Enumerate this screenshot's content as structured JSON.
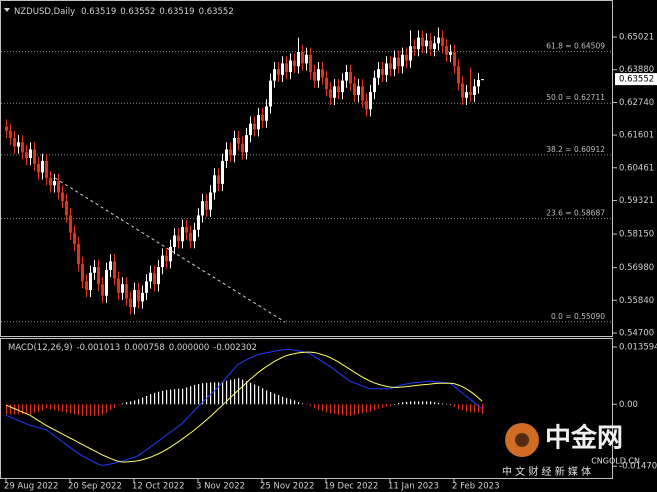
{
  "chart_data": [
    {
      "type": "candlestick",
      "title": "NZDUSD,Daily",
      "bull_color": "#ffffff",
      "bear_color": "#e03020",
      "categories": [
        "29 Aug 2022",
        null,
        null,
        null,
        null,
        null,
        null,
        null,
        null,
        null,
        null,
        null,
        null,
        null,
        null,
        null,
        "20 Sep 2022",
        null,
        null,
        null,
        null,
        null,
        null,
        null,
        null,
        null,
        null,
        null,
        null,
        null,
        null,
        null,
        "12 Oct 2022",
        null,
        null,
        null,
        null,
        null,
        null,
        null,
        null,
        null,
        null,
        null,
        null,
        null,
        null,
        null,
        "3 Nov 2022",
        null,
        null,
        null,
        null,
        null,
        null,
        null,
        null,
        null,
        null,
        null,
        null,
        null,
        null,
        null,
        "25 Nov 2022",
        null,
        null,
        null,
        null,
        null,
        null,
        null,
        null,
        null,
        null,
        null,
        null,
        null,
        null,
        null,
        "19 Dec 2022",
        null,
        null,
        null,
        null,
        null,
        null,
        null,
        null,
        null,
        null,
        null,
        null,
        null,
        null,
        null,
        "11 Jan 2023",
        null,
        null,
        null,
        null,
        null,
        null,
        null,
        null,
        null,
        null,
        null,
        null,
        null,
        null,
        null,
        "2 Feb 2023",
        null,
        null,
        null,
        null,
        null,
        null,
        null
      ],
      "open": [
        0.619,
        0.6175,
        0.615,
        0.612,
        0.6135,
        0.61,
        0.608,
        0.611,
        0.606,
        0.603,
        0.607,
        0.601,
        0.5985,
        0.6,
        0.596,
        0.593,
        0.588,
        0.582,
        0.578,
        0.571,
        0.565,
        0.562,
        0.568,
        0.57,
        0.564,
        0.56,
        0.569,
        0.572,
        0.566,
        0.561,
        0.564,
        0.559,
        0.556,
        0.562,
        0.558,
        0.561,
        0.565,
        0.568,
        0.564,
        0.57,
        0.574,
        0.572,
        0.577,
        0.581,
        0.579,
        0.584,
        0.582,
        0.579,
        0.583,
        0.588,
        0.593,
        0.59,
        0.596,
        0.602,
        0.599,
        0.607,
        0.611,
        0.609,
        0.615,
        0.613,
        0.61,
        0.616,
        0.62,
        0.618,
        0.623,
        0.621,
        0.626,
        0.635,
        0.639,
        0.637,
        0.641,
        0.638,
        0.642,
        0.64,
        0.645,
        0.641,
        0.644,
        0.638,
        0.635,
        0.639,
        0.636,
        0.632,
        0.629,
        0.633,
        0.631,
        0.635,
        0.638,
        0.634,
        0.63,
        0.633,
        0.628,
        0.625,
        0.631,
        0.636,
        0.639,
        0.637,
        0.641,
        0.639,
        0.643,
        0.64,
        0.644,
        0.642,
        0.647,
        0.646,
        0.65,
        0.647,
        0.649,
        0.646,
        0.648,
        0.65,
        0.647,
        0.644,
        0.645,
        0.64,
        0.634,
        0.629,
        0.631,
        0.63,
        0.633,
        0.63519
      ],
      "high": [
        0.6215,
        0.62,
        0.6175,
        0.616,
        0.616,
        0.6125,
        0.6135,
        0.6135,
        0.6085,
        0.6095,
        0.6095,
        0.6035,
        0.6025,
        0.6025,
        0.5985,
        0.5955,
        0.5905,
        0.5845,
        0.5805,
        0.5735,
        0.5675,
        0.5705,
        0.5725,
        0.5725,
        0.5665,
        0.5715,
        0.5745,
        0.5745,
        0.5685,
        0.5665,
        0.5665,
        0.5615,
        0.5645,
        0.5645,
        0.5635,
        0.5675,
        0.5705,
        0.5705,
        0.5725,
        0.5765,
        0.5765,
        0.5795,
        0.5835,
        0.5835,
        0.5865,
        0.5865,
        0.5845,
        0.5855,
        0.5905,
        0.5955,
        0.5955,
        0.5985,
        0.6045,
        0.6045,
        0.6095,
        0.6135,
        0.6135,
        0.6175,
        0.6175,
        0.6155,
        0.6185,
        0.6225,
        0.6225,
        0.6255,
        0.6255,
        0.6285,
        0.6375,
        0.6415,
        0.6415,
        0.6435,
        0.6435,
        0.6445,
        0.6445,
        0.65,
        0.6475,
        0.6465,
        0.6465,
        0.6405,
        0.6415,
        0.6415,
        0.6385,
        0.6345,
        0.6355,
        0.6355,
        0.6375,
        0.6405,
        0.6405,
        0.6365,
        0.6355,
        0.6355,
        0.6305,
        0.6335,
        0.6385,
        0.6415,
        0.6415,
        0.6435,
        0.6435,
        0.6455,
        0.6455,
        0.6465,
        0.6465,
        0.6525,
        0.6495,
        0.6525,
        0.6525,
        0.6515,
        0.6515,
        0.6505,
        0.6535,
        0.6525,
        0.6495,
        0.6475,
        0.6475,
        0.6425,
        0.6365,
        0.6335,
        0.6395,
        0.6355,
        0.6377,
        0.63552
      ],
      "low": [
        0.615,
        0.6125,
        0.6095,
        0.6095,
        0.6075,
        0.6055,
        0.6055,
        0.6035,
        0.6005,
        0.6005,
        0.5985,
        0.596,
        0.596,
        0.5935,
        0.5905,
        0.5855,
        0.5795,
        0.5755,
        0.5685,
        0.5625,
        0.5595,
        0.5595,
        0.5655,
        0.5615,
        0.5575,
        0.5575,
        0.5665,
        0.5635,
        0.5585,
        0.5585,
        0.5565,
        0.5535,
        0.5535,
        0.5555,
        0.5555,
        0.5585,
        0.5625,
        0.5615,
        0.5615,
        0.5675,
        0.5695,
        0.5695,
        0.5745,
        0.5765,
        0.5765,
        0.5795,
        0.5765,
        0.5765,
        0.5805,
        0.5855,
        0.5875,
        0.5875,
        0.5935,
        0.5965,
        0.5965,
        0.6045,
        0.6065,
        0.6065,
        0.6105,
        0.6075,
        0.6075,
        0.6135,
        0.6155,
        0.6155,
        0.6185,
        0.6185,
        0.6235,
        0.6325,
        0.6345,
        0.6345,
        0.6355,
        0.6355,
        0.6375,
        0.6375,
        0.6385,
        0.6385,
        0.6355,
        0.6325,
        0.6325,
        0.6335,
        0.6295,
        0.6265,
        0.6265,
        0.6285,
        0.6285,
        0.6325,
        0.6315,
        0.6275,
        0.6275,
        0.6255,
        0.6225,
        0.6225,
        0.6285,
        0.6335,
        0.6345,
        0.6345,
        0.6365,
        0.6365,
        0.6375,
        0.6375,
        0.6395,
        0.6395,
        0.6435,
        0.6435,
        0.6445,
        0.6445,
        0.6435,
        0.6435,
        0.6455,
        0.6445,
        0.6415,
        0.6415,
        0.6375,
        0.6315,
        0.6265,
        0.6265,
        0.6275,
        0.6275,
        0.6305,
        0.63519
      ],
      "close": [
        0.6175,
        0.615,
        0.612,
        0.6135,
        0.61,
        0.608,
        0.611,
        0.606,
        0.603,
        0.607,
        0.601,
        0.5985,
        0.6,
        0.596,
        0.593,
        0.588,
        0.582,
        0.578,
        0.571,
        0.565,
        0.562,
        0.568,
        0.57,
        0.564,
        0.56,
        0.569,
        0.572,
        0.566,
        0.561,
        0.564,
        0.559,
        0.556,
        0.562,
        0.558,
        0.561,
        0.565,
        0.568,
        0.564,
        0.57,
        0.574,
        0.572,
        0.577,
        0.581,
        0.579,
        0.584,
        0.582,
        0.579,
        0.583,
        0.588,
        0.593,
        0.59,
        0.596,
        0.602,
        0.599,
        0.607,
        0.611,
        0.609,
        0.615,
        0.613,
        0.61,
        0.616,
        0.62,
        0.618,
        0.623,
        0.621,
        0.626,
        0.635,
        0.639,
        0.637,
        0.641,
        0.638,
        0.642,
        0.64,
        0.645,
        0.641,
        0.644,
        0.638,
        0.635,
        0.639,
        0.636,
        0.632,
        0.629,
        0.633,
        0.631,
        0.635,
        0.638,
        0.634,
        0.63,
        0.633,
        0.628,
        0.625,
        0.631,
        0.636,
        0.639,
        0.637,
        0.641,
        0.639,
        0.643,
        0.64,
        0.644,
        0.642,
        0.647,
        0.646,
        0.65,
        0.647,
        0.649,
        0.646,
        0.648,
        0.65,
        0.647,
        0.644,
        0.645,
        0.64,
        0.634,
        0.629,
        0.631,
        0.63,
        0.633,
        0.6352,
        0.63552
      ],
      "ylim": [
        0.54595,
        0.66241
      ],
      "yticks": [
        0.65021,
        {
          "value": 0.6388,
          "label": "0.63880"
        },
        {
          "value": 0.6274,
          "label": "0.62740"
        },
        0.61601,
        0.60461,
        0.59321,
        {
          "value": 0.5815,
          "label": "0.58150"
        },
        {
          "value": 0.5698,
          "label": "0.56980"
        },
        {
          "value": 0.5584,
          "label": "0.55840"
        },
        {
          "value": 0.547,
          "label": "0.54700"
        }
      ],
      "levels": [
        {
          "value": 0.64509,
          "label": "61.8 = 0.64509"
        },
        {
          "value": 0.62711,
          "label": "50.0 = 0.62711"
        },
        {
          "value": 0.60912,
          "label": "38.2 = 0.60912"
        },
        {
          "value": 0.58687,
          "label": "23.6 = 0.58687"
        },
        {
          "value": 0.5509,
          "label": "0.0 = 0.55090"
        }
      ]
    },
    {
      "type": "macd",
      "title": "MACD(12,26,9)",
      "readout": [
        "-0.001013",
        "0.000758",
        "0.000000",
        "-0.002302"
      ],
      "histogram_up_color": "#ffffff",
      "histogram_down_color": "#e03020",
      "macd_color": "#1f3cff",
      "signal_color": "#ffff66",
      "macd": [
        -0.0026,
        -0.003,
        -0.0034,
        -0.0038,
        -0.0042,
        -0.0046,
        -0.005,
        -0.0052,
        -0.0055,
        -0.0058,
        -0.006,
        -0.0067,
        -0.0074,
        -0.0081,
        -0.0088,
        -0.0095,
        -0.0102,
        -0.0109,
        -0.0116,
        -0.0122,
        -0.0127,
        -0.0132,
        -0.0137,
        -0.0142,
        -0.0145,
        -0.0144,
        -0.0142,
        -0.014,
        -0.0137,
        -0.0135,
        -0.0132,
        -0.0129,
        -0.0126,
        -0.0122,
        -0.0116,
        -0.0109,
        -0.0102,
        -0.0095,
        -0.0088,
        -0.0081,
        -0.0074,
        -0.0067,
        -0.006,
        -0.0053,
        -0.0046,
        -0.0036,
        -0.0026,
        -0.0016,
        -0.0006,
        0.0004,
        0.0013,
        0.0022,
        0.0031,
        0.004,
        0.0051,
        0.0062,
        0.0073,
        0.0084,
        0.0095,
        0.01,
        0.0105,
        0.011,
        0.0114,
        0.0118,
        0.012,
        0.0122,
        0.0124,
        0.0126,
        0.0128,
        0.0129,
        0.013,
        0.013,
        0.0129,
        0.0127,
        0.0125,
        0.0123,
        0.012,
        0.0114,
        0.0108,
        0.0102,
        0.0096,
        0.009,
        0.0083,
        0.0076,
        0.0069,
        0.0062,
        0.0055,
        0.0051,
        0.0048,
        0.0044,
        0.004,
        0.0037,
        0.0037,
        0.0037,
        0.0037,
        0.0037,
        0.0037,
        0.004,
        0.0043,
        0.0046,
        0.0048,
        0.005,
        0.0051,
        0.0052,
        0.0053,
        0.0054,
        0.0055,
        0.0054,
        0.0053,
        0.0052,
        0.0051,
        0.005,
        0.0043,
        0.0035,
        0.0028,
        0.002,
        0.0012,
        0.0005,
        -0.0003,
        -0.001013
      ],
      "signal": [
        -0.0002,
        -0.0006,
        -0.001,
        -0.0014,
        -0.0018,
        -0.0022,
        -0.0026,
        -0.0032,
        -0.0038,
        -0.0044,
        -0.005,
        -0.0055,
        -0.006,
        -0.0065,
        -0.007,
        -0.0075,
        -0.008,
        -0.0085,
        -0.009,
        -0.0095,
        -0.01,
        -0.0105,
        -0.011,
        -0.0115,
        -0.012,
        -0.0124,
        -0.0128,
        -0.0132,
        -0.0135,
        -0.0137,
        -0.0137,
        -0.0136,
        -0.0135,
        -0.0134,
        -0.0132,
        -0.0129,
        -0.0126,
        -0.0122,
        -0.0118,
        -0.0113,
        -0.0108,
        -0.0102,
        -0.0096,
        -0.009,
        -0.0083,
        -0.0076,
        -0.0069,
        -0.0062,
        -0.0054,
        -0.0046,
        -0.0038,
        -0.003,
        -0.0021,
        -0.0012,
        -0.0003,
        0.0006,
        0.0015,
        0.0024,
        0.0033,
        0.0041,
        0.005,
        0.0059,
        0.0067,
        0.0075,
        0.0082,
        0.0089,
        0.0095,
        0.0101,
        0.0106,
        0.0111,
        0.0115,
        0.0118,
        0.012,
        0.0122,
        0.0123,
        0.0124,
        0.0124,
        0.0123,
        0.0121,
        0.0118,
        0.0115,
        0.0111,
        0.0106,
        0.0101,
        0.0095,
        0.0089,
        0.0083,
        0.0077,
        0.0071,
        0.0065,
        0.006,
        0.0055,
        0.0051,
        0.0048,
        0.0045,
        0.0043,
        0.0041,
        0.004,
        0.004,
        0.0041,
        0.0042,
        0.0043,
        0.0044,
        0.0045,
        0.0046,
        0.0047,
        0.0048,
        0.0049,
        0.005,
        0.005,
        0.005,
        0.005,
        0.0049,
        0.0046,
        0.0042,
        0.0037,
        0.0031,
        0.0024,
        0.0016,
        0.000758
      ],
      "histogram": [
        -0.0024,
        -0.0024,
        -0.0024,
        -0.0024,
        -0.0024,
        -0.0024,
        -0.0024,
        -0.002,
        -0.0017,
        -0.0014,
        -0.001,
        -0.0012,
        -0.0014,
        -0.0016,
        -0.0018,
        -0.002,
        -0.0022,
        -0.0024,
        -0.0026,
        -0.0027,
        -0.0027,
        -0.0027,
        -0.0027,
        -0.0027,
        -0.0025,
        -0.002,
        -0.0014,
        -0.0008,
        -0.0002,
        0.0002,
        0.0005,
        0.0007,
        0.0009,
        0.0012,
        0.0016,
        0.002,
        0.0024,
        0.0027,
        0.003,
        0.0032,
        0.0034,
        0.0035,
        0.0036,
        0.0037,
        0.0037,
        0.004,
        0.0043,
        0.0046,
        0.0048,
        0.005,
        0.0051,
        0.0052,
        0.0052,
        0.0052,
        0.0054,
        0.0056,
        0.0058,
        0.006,
        0.0062,
        0.0059,
        0.0055,
        0.0051,
        0.0047,
        0.0043,
        0.0038,
        0.0033,
        0.0029,
        0.0025,
        0.0022,
        0.0018,
        0.0015,
        0.0012,
        0.0009,
        0.0005,
        0.0002,
        -0.0001,
        -0.0004,
        -0.0009,
        -0.0013,
        -0.0016,
        -0.0019,
        -0.0021,
        -0.0023,
        -0.0025,
        -0.0026,
        -0.0027,
        -0.0028,
        -0.0026,
        -0.0023,
        -0.0021,
        -0.002,
        -0.0018,
        -0.0014,
        -0.0011,
        -0.0008,
        -0.0006,
        -0.0004,
        0.0,
        0.0003,
        0.0005,
        0.0006,
        0.0007,
        0.0007,
        0.0007,
        0.0007,
        0.0007,
        0.0007,
        0.0005,
        0.0003,
        0.0002,
        0.0001,
        0.0,
        -0.0006,
        -0.0011,
        -0.0014,
        -0.0017,
        -0.0019,
        -0.0019,
        -0.0019,
        -0.002302
      ],
      "ylim": [
        -0.0175,
        0.0155
      ],
      "yticks": [
        0.013594,
        {
          "value": 0,
          "label": "0.00"
        },
        -0.014703
      ]
    }
  ],
  "watermark": {
    "name": "中金网",
    "site": "CNGOLD.CN",
    "slogan": "中 文 财 经 新 媒 体"
  }
}
